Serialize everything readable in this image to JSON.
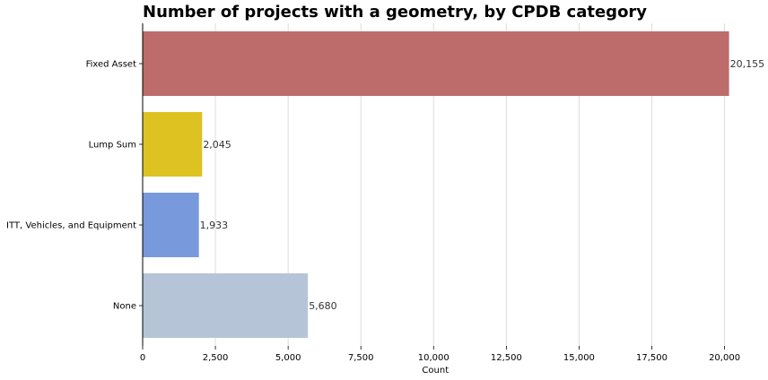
{
  "chart_data": {
    "type": "bar",
    "orientation": "horizontal",
    "title": "Number of projects with a geometry, by CPDB category",
    "xlabel": "Count",
    "ylabel": "",
    "categories": [
      "Fixed Asset",
      "Lump Sum",
      "ITT, Vehicles, and Equipment",
      "None"
    ],
    "values": [
      20155,
      2045,
      1933,
      5680
    ],
    "value_labels": [
      "20,155",
      "2,045",
      "1,933",
      "5,680"
    ],
    "colors": [
      "#bd6b6b",
      "#dec222",
      "#7899dc",
      "#b5c5d7"
    ],
    "xlim": [
      0,
      21000
    ],
    "x_ticks": [
      0,
      2500,
      5000,
      7500,
      10000,
      12500,
      15000,
      17500,
      20000
    ],
    "x_tick_labels": [
      "0",
      "2,500",
      "5,000",
      "7,500",
      "10,000",
      "12,500",
      "15,000",
      "17,500",
      "20,000"
    ],
    "grid": "vertical"
  }
}
